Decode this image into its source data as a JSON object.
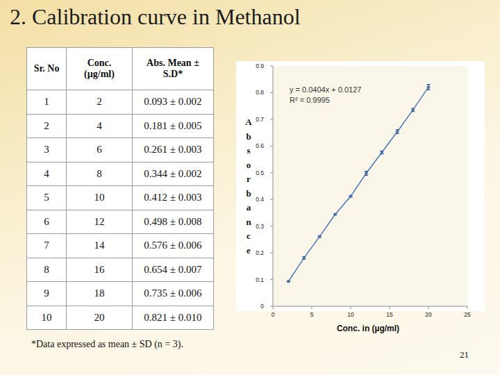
{
  "slide": {
    "title": "2. Calibration curve in Methanol",
    "table": {
      "header": [
        "Sr. No",
        "Conc. (µg/ml)",
        "Abs. Mean ± S.D*"
      ],
      "rows": [
        [
          1,
          2,
          "0.093 ± 0.002"
        ],
        [
          2,
          4,
          "0.181 ± 0.005"
        ],
        [
          3,
          6,
          "0.261 ± 0.003"
        ],
        [
          4,
          8,
          "0.344 ± 0.002"
        ],
        [
          5,
          10,
          "0.412 ± 0.003"
        ],
        [
          6,
          12,
          "0.498 ± 0.008"
        ],
        [
          7,
          14,
          "0.576 ± 0.006"
        ],
        [
          8,
          16,
          "0.654 ± 0.007"
        ],
        [
          9,
          18,
          "0.735 ± 0.006"
        ],
        [
          10,
          20,
          "0.821 ± 0.010"
        ]
      ]
    },
    "footnote": "*Data expressed as mean ± SD (n = 3).",
    "page_number": 21
  },
  "chart_data": {
    "type": "line",
    "x": [
      2,
      4,
      6,
      8,
      10,
      12,
      14,
      16,
      18,
      20
    ],
    "values": [
      0.093,
      0.181,
      0.261,
      0.344,
      0.412,
      0.498,
      0.576,
      0.654,
      0.735,
      0.821
    ],
    "errors": [
      0.002,
      0.005,
      0.003,
      0.002,
      0.003,
      0.008,
      0.006,
      0.007,
      0.006,
      0.01
    ],
    "color": "#4a78b4",
    "marker": "circle",
    "grid": false,
    "annotations": [
      "y = 0.0404x + 0.0127",
      "R² = 0.9995"
    ],
    "x_label": "Conc. in (µg/ml)",
    "y_label": "Absorbance",
    "xlim": [
      0,
      25
    ],
    "xticks": [
      0,
      5,
      10,
      15,
      20,
      25
    ],
    "ylim": [
      0,
      0.9
    ],
    "yticks": [
      0,
      0.1,
      0.2,
      0.3,
      0.4,
      0.5,
      0.6,
      0.7,
      0.8,
      0.9
    ]
  }
}
